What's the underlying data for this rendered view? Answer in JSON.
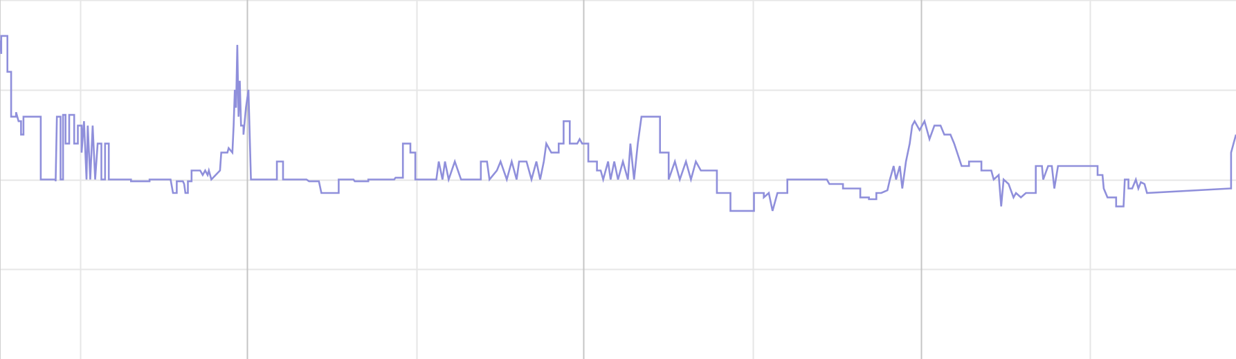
{
  "chart_data": {
    "type": "line",
    "title": "",
    "xlabel": "",
    "ylabel": "",
    "interpolation": "step",
    "grid": true,
    "legend": "none",
    "xlim": [
      0,
      100
    ],
    "ylim": [
      0,
      4
    ],
    "x_major_grid": [
      20,
      47.2,
      74.5
    ],
    "x_minor_grid": [
      6.5,
      33.7,
      60.9,
      88.2
    ],
    "y_grid": [
      1,
      2,
      3,
      4
    ],
    "series": [
      {
        "color": "#8f8fdb",
        "points": [
          [
            0,
            3.55
          ],
          [
            0.1,
            3.4
          ],
          [
            0.1,
            3.6
          ],
          [
            0.6,
            3.6
          ],
          [
            0.6,
            3.2
          ],
          [
            0.9,
            3.2
          ],
          [
            0.9,
            2.7
          ],
          [
            1.3,
            2.7
          ],
          [
            1.3,
            2.75
          ],
          [
            1.5,
            2.65
          ],
          [
            1.7,
            2.65
          ],
          [
            1.7,
            2.5
          ],
          [
            1.9,
            2.5
          ],
          [
            1.9,
            2.7
          ],
          [
            3.3,
            2.7
          ],
          [
            3.3,
            2.0
          ],
          [
            4.5,
            2.0
          ],
          [
            4.5,
            1.98
          ],
          [
            4.6,
            2.7
          ],
          [
            4.9,
            2.7
          ],
          [
            4.9,
            2.0
          ],
          [
            5.1,
            2.0
          ],
          [
            5.1,
            2.72
          ],
          [
            5.3,
            2.72
          ],
          [
            5.3,
            2.4
          ],
          [
            5.6,
            2.4
          ],
          [
            5.6,
            2.72
          ],
          [
            6.0,
            2.72
          ],
          [
            6.0,
            2.4
          ],
          [
            6.3,
            2.4
          ],
          [
            6.3,
            2.6
          ],
          [
            6.6,
            2.6
          ],
          [
            6.6,
            2.3
          ],
          [
            6.8,
            2.65
          ],
          [
            7.0,
            2.0
          ],
          [
            7.1,
            2.6
          ],
          [
            7.3,
            2.0
          ],
          [
            7.5,
            2.6
          ],
          [
            7.7,
            2.0
          ],
          [
            7.9,
            2.4
          ],
          [
            8.2,
            2.4
          ],
          [
            8.2,
            2.0
          ],
          [
            8.5,
            2.0
          ],
          [
            8.5,
            2.4
          ],
          [
            8.8,
            2.4
          ],
          [
            8.8,
            2.0
          ],
          [
            10.6,
            2.0
          ],
          [
            10.6,
            1.98
          ],
          [
            12.1,
            1.98
          ],
          [
            12.1,
            2.0
          ],
          [
            13.8,
            2.0
          ],
          [
            14.0,
            1.85
          ],
          [
            14.3,
            1.85
          ],
          [
            14.3,
            1.98
          ],
          [
            14.8,
            1.98
          ],
          [
            14.9,
            1.95
          ],
          [
            15.0,
            1.85
          ],
          [
            15.2,
            1.85
          ],
          [
            15.2,
            1.98
          ],
          [
            15.5,
            1.98
          ],
          [
            15.5,
            2.1
          ],
          [
            16.2,
            2.1
          ],
          [
            16.4,
            2.05
          ],
          [
            16.6,
            2.1
          ],
          [
            16.8,
            2.05
          ],
          [
            16.9,
            2.1
          ],
          [
            17.1,
            2.0
          ],
          [
            17.8,
            2.1
          ],
          [
            17.9,
            2.3
          ],
          [
            18.4,
            2.3
          ],
          [
            18.5,
            2.35
          ],
          [
            18.8,
            2.3
          ],
          [
            18.9,
            2.6
          ],
          [
            19.0,
            3.0
          ],
          [
            19.1,
            2.8
          ],
          [
            19.2,
            3.5
          ],
          [
            19.3,
            2.7
          ],
          [
            19.4,
            3.1
          ],
          [
            19.5,
            2.6
          ],
          [
            19.7,
            2.6
          ],
          [
            19.7,
            2.5
          ],
          [
            19.9,
            2.8
          ],
          [
            20.1,
            3.0
          ],
          [
            20.3,
            2.0
          ],
          [
            22.4,
            2.0
          ],
          [
            22.4,
            2.2
          ],
          [
            22.9,
            2.2
          ],
          [
            22.9,
            2.0
          ],
          [
            24.8,
            2.0
          ],
          [
            25.0,
            1.98
          ],
          [
            25.8,
            1.98
          ],
          [
            26.0,
            1.85
          ],
          [
            27.4,
            1.85
          ],
          [
            27.4,
            2.0
          ],
          [
            28.6,
            2.0
          ],
          [
            28.7,
            1.98
          ],
          [
            29.8,
            1.98
          ],
          [
            29.8,
            2.0
          ],
          [
            31.9,
            2.0
          ],
          [
            32.0,
            2.02
          ],
          [
            32.6,
            2.02
          ],
          [
            32.6,
            2.4
          ],
          [
            33.2,
            2.4
          ],
          [
            33.2,
            2.3
          ],
          [
            33.6,
            2.3
          ],
          [
            33.6,
            2.0
          ],
          [
            34.1,
            2.0
          ],
          [
            34.1,
            2.0
          ],
          [
            35.3,
            2.0
          ],
          [
            35.5,
            2.2
          ],
          [
            35.8,
            2.0
          ],
          [
            36.0,
            2.2
          ],
          [
            36.3,
            2.0
          ],
          [
            36.8,
            2.2
          ],
          [
            37.3,
            2.0
          ],
          [
            38.0,
            2.0
          ],
          [
            38.9,
            2.0
          ],
          [
            38.9,
            2.2
          ],
          [
            39.4,
            2.2
          ],
          [
            39.6,
            2.0
          ],
          [
            40.2,
            2.1
          ],
          [
            40.5,
            2.2
          ],
          [
            41.0,
            2.0
          ],
          [
            41.4,
            2.2
          ],
          [
            41.8,
            2.0
          ],
          [
            42.0,
            2.2
          ],
          [
            42.6,
            2.2
          ],
          [
            43.0,
            2.0
          ],
          [
            43.4,
            2.2
          ],
          [
            43.7,
            2.0
          ],
          [
            44.0,
            2.2
          ],
          [
            44.2,
            2.4
          ],
          [
            44.6,
            2.3
          ],
          [
            45.2,
            2.3
          ],
          [
            45.2,
            2.4
          ],
          [
            45.6,
            2.4
          ],
          [
            45.6,
            2.65
          ],
          [
            46.1,
            2.65
          ],
          [
            46.1,
            2.4
          ],
          [
            46.7,
            2.4
          ],
          [
            46.9,
            2.45
          ],
          [
            47.1,
            2.4
          ],
          [
            47.6,
            2.4
          ],
          [
            47.6,
            2.2
          ],
          [
            48.3,
            2.2
          ],
          [
            48.3,
            2.1
          ],
          [
            48.6,
            2.1
          ],
          [
            48.8,
            2.0
          ],
          [
            49.2,
            2.2
          ],
          [
            49.4,
            2.0
          ],
          [
            49.7,
            2.2
          ],
          [
            50.0,
            2.0
          ],
          [
            50.4,
            2.2
          ],
          [
            50.8,
            2.0
          ],
          [
            51.0,
            2.4
          ],
          [
            51.3,
            2.0
          ],
          [
            51.6,
            2.4
          ],
          [
            51.9,
            2.7
          ],
          [
            53.4,
            2.7
          ],
          [
            53.4,
            2.3
          ],
          [
            54.1,
            2.3
          ],
          [
            54.1,
            2.0
          ],
          [
            54.6,
            2.2
          ],
          [
            55.0,
            2.0
          ],
          [
            55.5,
            2.2
          ],
          [
            55.9,
            2.0
          ],
          [
            56.3,
            2.2
          ],
          [
            56.7,
            2.1
          ],
          [
            57.0,
            2.1
          ],
          [
            58.0,
            2.1
          ],
          [
            58.0,
            1.85
          ],
          [
            59.1,
            1.85
          ],
          [
            59.1,
            1.65
          ],
          [
            61.0,
            1.65
          ],
          [
            61.0,
            1.85
          ],
          [
            61.8,
            1.85
          ],
          [
            61.8,
            1.8
          ],
          [
            62.2,
            1.85
          ],
          [
            62.5,
            1.65
          ],
          [
            62.9,
            1.85
          ],
          [
            63.7,
            1.85
          ],
          [
            63.7,
            2.0
          ],
          [
            66.9,
            2.0
          ],
          [
            67.1,
            1.95
          ],
          [
            68.2,
            1.95
          ],
          [
            68.2,
            1.9
          ],
          [
            69.6,
            1.9
          ],
          [
            69.6,
            1.8
          ],
          [
            70.3,
            1.8
          ],
          [
            70.3,
            1.78
          ],
          [
            70.9,
            1.78
          ],
          [
            70.9,
            1.85
          ],
          [
            71.3,
            1.85
          ],
          [
            71.8,
            1.88
          ],
          [
            72.0,
            2.0
          ],
          [
            72.3,
            2.15
          ],
          [
            72.5,
            2.0
          ],
          [
            72.8,
            2.15
          ],
          [
            73.0,
            1.9
          ],
          [
            73.3,
            2.2
          ],
          [
            73.6,
            2.4
          ],
          [
            73.8,
            2.6
          ],
          [
            74.0,
            2.65
          ],
          [
            74.4,
            2.55
          ],
          [
            74.8,
            2.65
          ],
          [
            75.2,
            2.45
          ],
          [
            75.6,
            2.6
          ],
          [
            76.1,
            2.6
          ],
          [
            76.4,
            2.5
          ],
          [
            76.9,
            2.5
          ],
          [
            77.2,
            2.4
          ],
          [
            77.8,
            2.15
          ],
          [
            78.4,
            2.15
          ],
          [
            78.4,
            2.2
          ],
          [
            79.4,
            2.2
          ],
          [
            79.4,
            2.1
          ],
          [
            80.2,
            2.1
          ],
          [
            80.4,
            2.0
          ],
          [
            80.8,
            2.05
          ],
          [
            81.0,
            1.7
          ],
          [
            81.2,
            2.0
          ],
          [
            81.6,
            1.95
          ],
          [
            82.0,
            1.8
          ],
          [
            82.2,
            1.85
          ],
          [
            82.6,
            1.8
          ],
          [
            83.0,
            1.85
          ],
          [
            83.2,
            1.85
          ],
          [
            83.8,
            1.85
          ],
          [
            83.8,
            2.15
          ],
          [
            84.3,
            2.15
          ],
          [
            84.4,
            2.0
          ],
          [
            84.8,
            2.15
          ],
          [
            85.1,
            2.15
          ],
          [
            85.3,
            1.9
          ],
          [
            85.6,
            2.15
          ],
          [
            86.0,
            2.15
          ],
          [
            86.1,
            2.15
          ],
          [
            87.1,
            2.15
          ],
          [
            87.6,
            2.15
          ],
          [
            88.8,
            2.15
          ],
          [
            88.8,
            2.05
          ],
          [
            89.2,
            2.05
          ],
          [
            89.3,
            1.9
          ],
          [
            89.6,
            1.8
          ],
          [
            90.3,
            1.8
          ],
          [
            90.3,
            1.7
          ],
          [
            90.9,
            1.7
          ],
          [
            91.0,
            2.0
          ],
          [
            91.3,
            2.0
          ],
          [
            91.3,
            1.9
          ],
          [
            91.6,
            1.9
          ],
          [
            91.9,
            2.0
          ],
          [
            92.1,
            1.9
          ],
          [
            92.3,
            1.97
          ],
          [
            92.6,
            1.95
          ],
          [
            92.8,
            1.85
          ],
          [
            99.5,
            1.9
          ],
          [
            99.6,
            1.9
          ],
          [
            99.6,
            2.3
          ],
          [
            99.8,
            2.4
          ],
          [
            100,
            2.5
          ]
        ]
      }
    ]
  }
}
